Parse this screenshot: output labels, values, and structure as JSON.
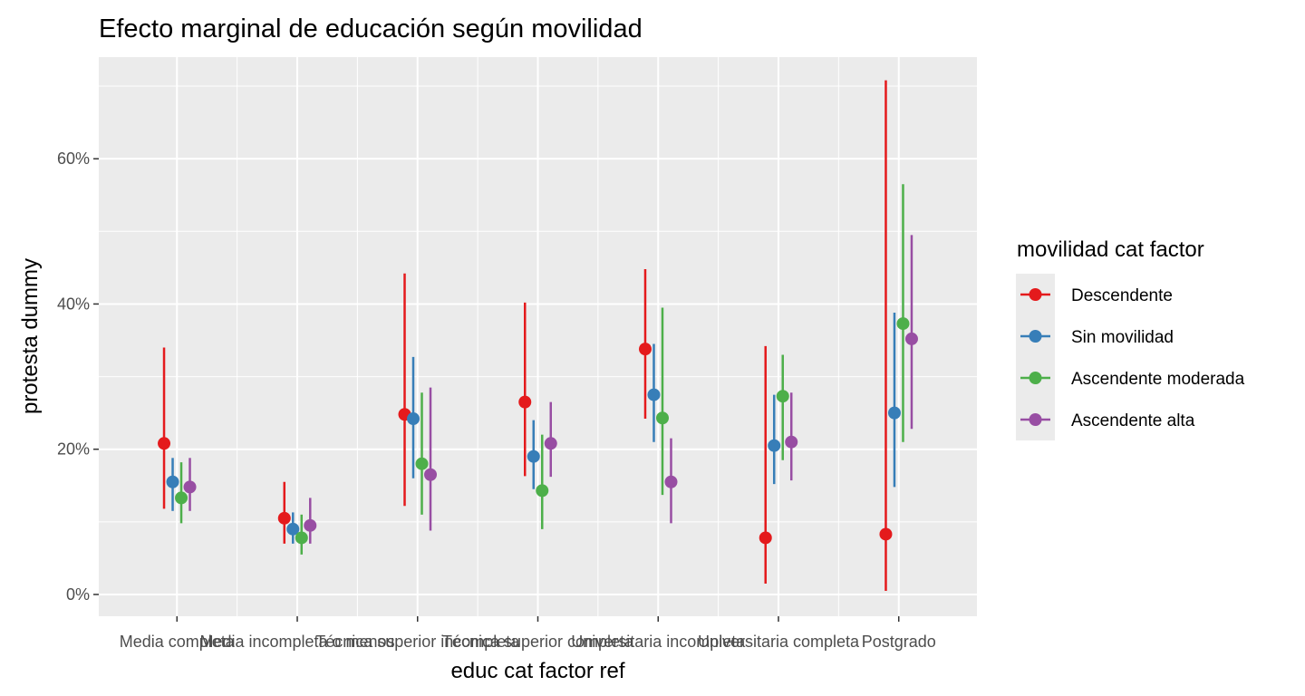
{
  "chart_data": {
    "type": "scatter",
    "title": "Efecto marginal de educación según movilidad",
    "xlabel": "educ cat factor ref",
    "ylabel": "protesta dummy",
    "categories": [
      "Media completa",
      "Media incompleta o menos",
      "Técnica superior incompleta",
      "Técnica superior completa",
      "Universitaria incompleta",
      "Universitaria completa",
      "Postgrado"
    ],
    "y_ticks": [
      0,
      20,
      40,
      60
    ],
    "y_tick_labels": [
      "0%",
      "20%",
      "40%",
      "60%"
    ],
    "ylim": [
      -3,
      74
    ],
    "grid": true,
    "legend": {
      "title": "movilidad cat factor",
      "position": "right"
    },
    "series": [
      {
        "name": "Descendente",
        "color": "#E41A1C",
        "values": [
          20.8,
          10.5,
          24.8,
          26.5,
          33.8,
          7.8,
          8.3
        ],
        "lower": [
          11.8,
          7.0,
          12.2,
          16.3,
          24.2,
          1.5,
          0.5
        ],
        "upper": [
          34.0,
          15.5,
          44.2,
          40.2,
          44.8,
          34.2,
          70.8
        ]
      },
      {
        "name": "Sin movilidad",
        "color": "#377EB8",
        "values": [
          15.5,
          9.0,
          24.2,
          19.0,
          27.5,
          20.5,
          25.0
        ],
        "lower": [
          11.5,
          7.0,
          16.0,
          14.5,
          21.0,
          15.2,
          14.8
        ],
        "upper": [
          18.8,
          11.3,
          32.7,
          24.0,
          34.5,
          27.5,
          38.8
        ]
      },
      {
        "name": "Ascendente moderada",
        "color": "#4DAF4A",
        "values": [
          13.3,
          7.8,
          18.0,
          14.3,
          24.3,
          27.3,
          37.3
        ],
        "lower": [
          9.8,
          5.5,
          11.0,
          9.0,
          13.7,
          18.5,
          21.0
        ],
        "upper": [
          18.2,
          11.0,
          27.8,
          22.0,
          39.5,
          33.0,
          56.5
        ]
      },
      {
        "name": "Ascendente alta",
        "color": "#984EA3",
        "values": [
          14.8,
          9.5,
          16.5,
          20.8,
          15.5,
          21.0,
          35.2
        ],
        "lower": [
          11.5,
          7.0,
          8.8,
          16.2,
          9.8,
          15.7,
          22.8
        ],
        "upper": [
          18.8,
          13.3,
          28.5,
          26.5,
          21.5,
          27.8,
          49.5
        ]
      }
    ]
  }
}
